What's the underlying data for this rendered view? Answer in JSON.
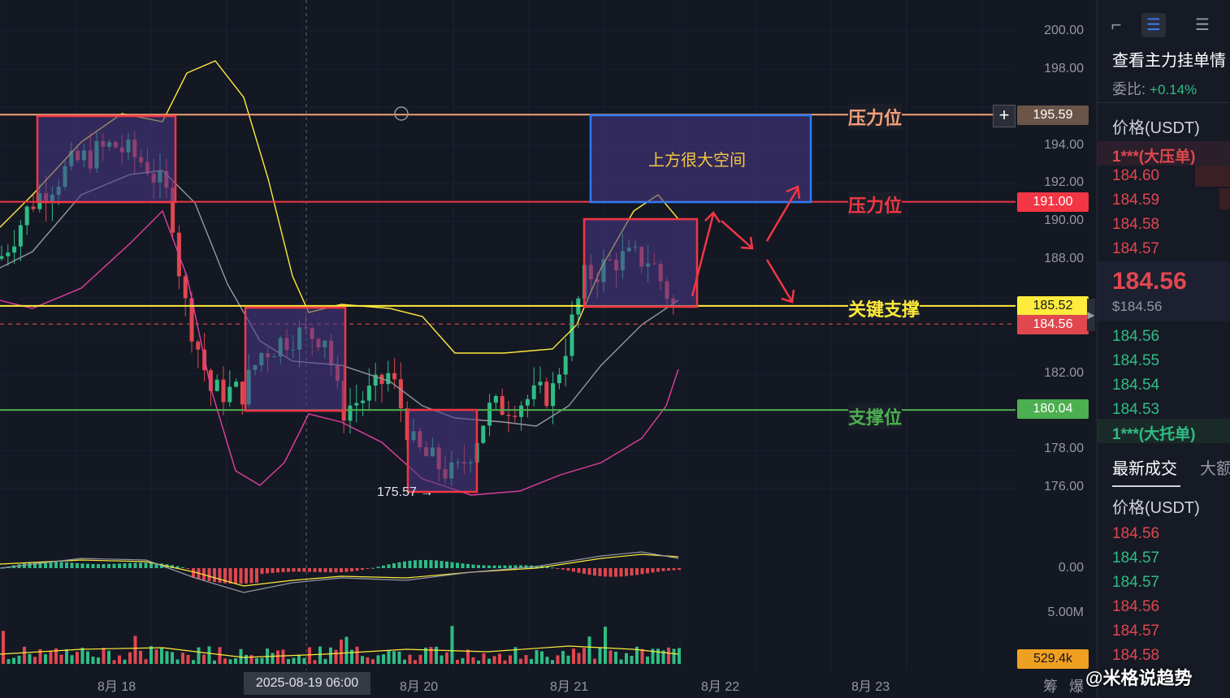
{
  "price_axis": {
    "ticks": [
      "200.00",
      "198.00",
      "195.59",
      "194.00",
      "192.00",
      "191.00",
      "190.00",
      "188.00",
      "185.52",
      "184.56",
      "182.00",
      "180.04",
      "178.00",
      "176.00"
    ],
    "macd_tick": "0.00",
    "volume_tick": "5.00M",
    "volume_tag": "529.4k"
  },
  "price_tags": {
    "resistance_top": "195.59",
    "resistance": "191.00",
    "key_support": "185.52",
    "current": "184.56",
    "support": "180.04"
  },
  "levels": {
    "resistance_top_label": "压力位",
    "resistance_label": "压力位",
    "key_support_label": "关键支撑",
    "support_label": "支撑位"
  },
  "annotations": {
    "upside_box": "上方很大空间",
    "low_marker": "175.57 →"
  },
  "time_axis": {
    "labels": [
      "8月 18",
      "8月 20",
      "8月 21",
      "8月 22",
      "8月 23"
    ],
    "crosshair": "2025-08-19 06:00",
    "right_labels": [
      "筹",
      "爆"
    ]
  },
  "orderbook": {
    "title": "查看主力挂单情",
    "ratio_label": "委比:",
    "ratio_value": "+0.14%",
    "price_header": "价格(USDT)",
    "big_ask": "1***(大压单)",
    "asks": [
      "184.60",
      "184.59",
      "184.58",
      "184.57"
    ],
    "last_price": "184.56",
    "last_price_usd": "$184.56",
    "bids": [
      "184.56",
      "184.55",
      "184.54",
      "184.53"
    ],
    "big_bid": "1***(大托单)",
    "tab_trades": "最新成交",
    "tab_large": "大额",
    "trades_header": "价格(USDT)",
    "trades": [
      {
        "price": "184.56",
        "side": "sell"
      },
      {
        "price": "184.57",
        "side": "buy"
      },
      {
        "price": "184.57",
        "side": "buy"
      },
      {
        "price": "184.56",
        "side": "sell"
      },
      {
        "price": "184.57",
        "side": "sell"
      },
      {
        "price": "184.58",
        "side": "sell"
      }
    ]
  },
  "watermark": "@米格说趋势",
  "colors": {
    "up": "#2ebd85",
    "down": "#e0474f",
    "resistance_top": "#f5a07a",
    "resistance": "#f23645",
    "key_support": "#ffeb3b",
    "support": "#4caf50",
    "box_fill": "#4a3a8c",
    "box_border": "#f23645",
    "upside_border": "#2f7bf5"
  }
}
